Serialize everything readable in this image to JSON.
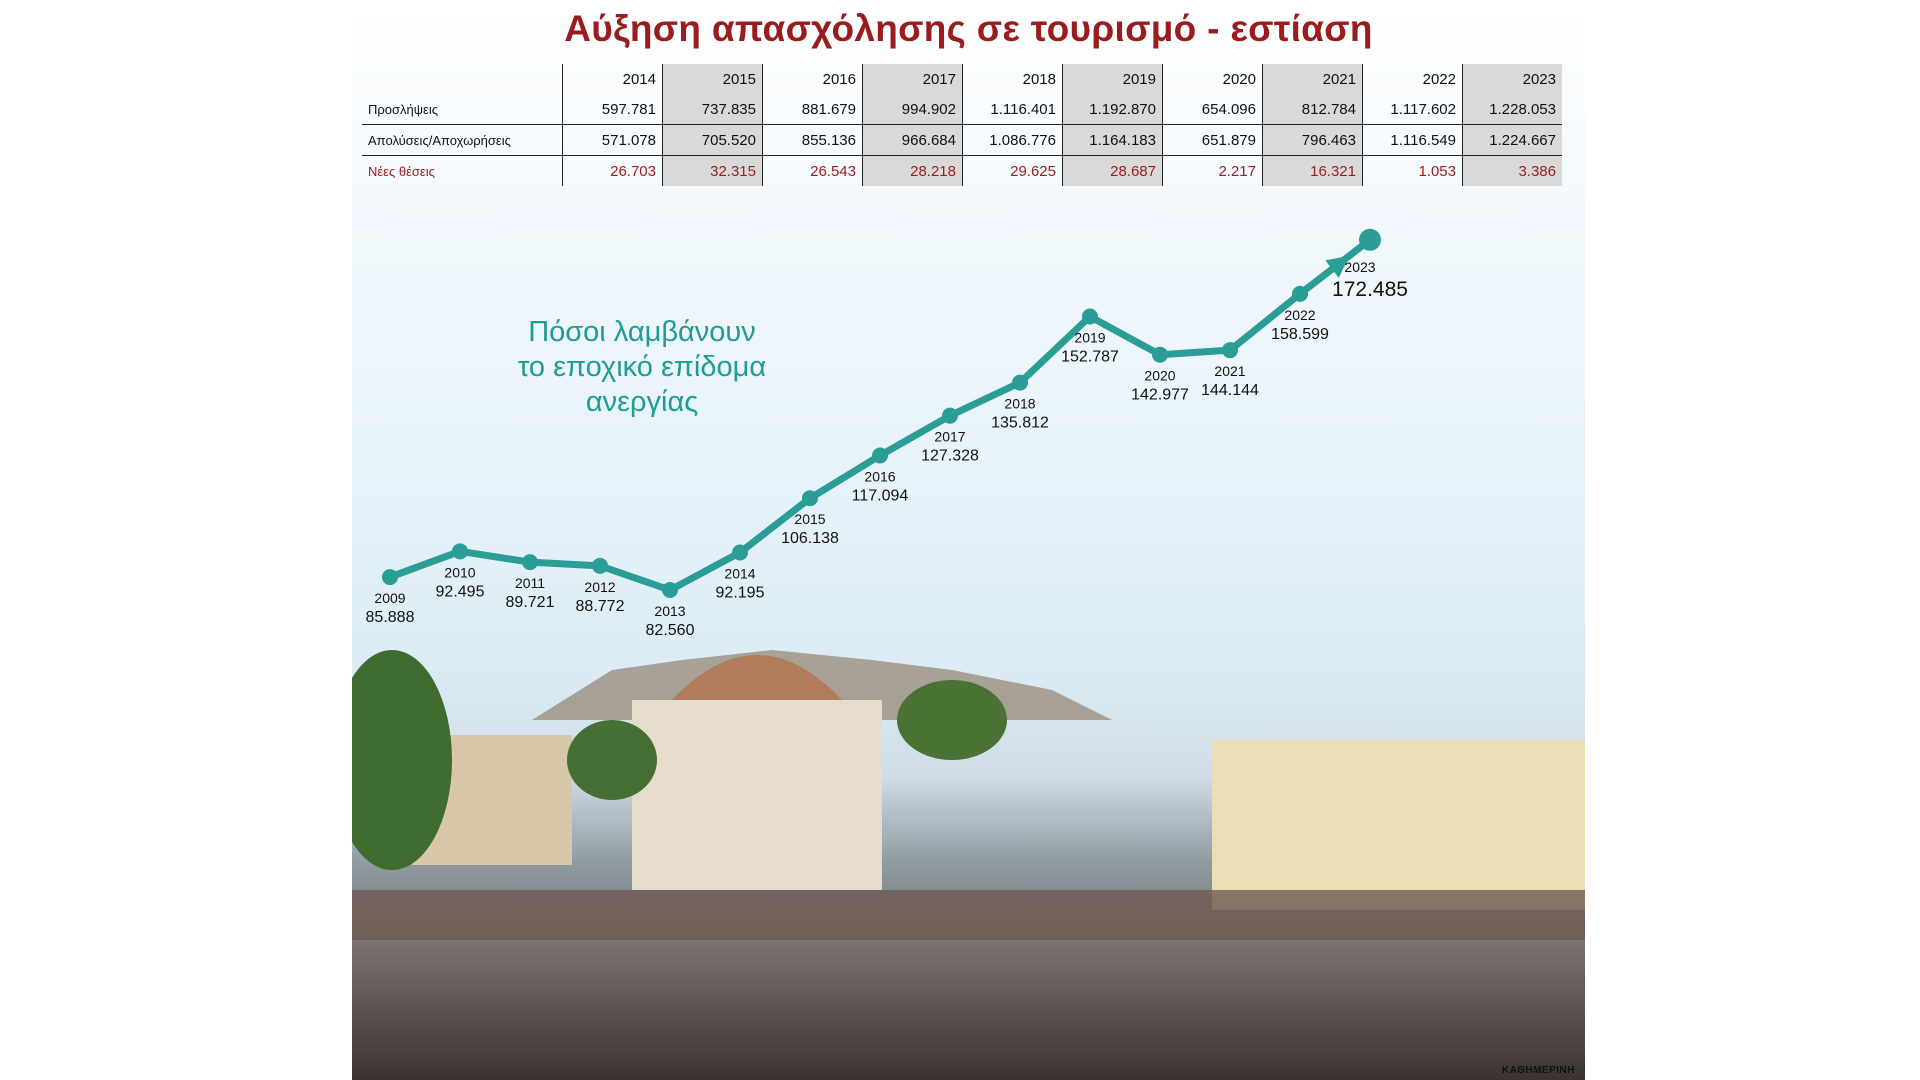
{
  "title": "Αύξηση απασχόλησης σε τουρισμό - εστίαση",
  "table": {
    "years": [
      "2014",
      "2015",
      "2016",
      "2017",
      "2018",
      "2019",
      "2020",
      "2021",
      "2022",
      "2023"
    ],
    "rows": [
      {
        "label": "Προσλήψεις",
        "values": [
          "597.781",
          "737.835",
          "881.679",
          "994.902",
          "1.116.401",
          "1.192.870",
          "654.096",
          "812.784",
          "1.117.602",
          "1.228.053"
        ]
      },
      {
        "label": "Απολύσεις/Αποχωρήσεις",
        "values": [
          "571.078",
          "705.520",
          "855.136",
          "966.684",
          "1.086.776",
          "1.164.183",
          "651.879",
          "796.463",
          "1.116.549",
          "1.224.667"
        ]
      },
      {
        "label": "Νέες θέσεις",
        "values": [
          "26.703",
          "32.315",
          "26.543",
          "28.218",
          "29.625",
          "28.687",
          "2.217",
          "16.321",
          "1.053",
          "3.386"
        ]
      }
    ]
  },
  "chart_data": {
    "type": "line",
    "title": "Πόσοι λαμβάνουν το εποχικό επίδομα ανεργίας",
    "title_lines": [
      "Πόσοι λαμβάνουν",
      "το εποχικό επίδομα",
      "ανεργίας"
    ],
    "x": [
      "2009",
      "2010",
      "2011",
      "2012",
      "2013",
      "2014",
      "2015",
      "2016",
      "2017",
      "2018",
      "2019",
      "2020",
      "2021",
      "2022",
      "2023"
    ],
    "values": [
      85888,
      92495,
      89721,
      88772,
      82560,
      92195,
      106138,
      117094,
      127328,
      135812,
      152787,
      142977,
      144144,
      158599,
      172485
    ],
    "value_labels": [
      "85.888",
      "92.495",
      "89.721",
      "88.772",
      "82.560",
      "92.195",
      "106.138",
      "117.094",
      "127.328",
      "135.812",
      "152.787",
      "142.977",
      "144.144",
      "158.599",
      "172.485"
    ],
    "color": "#2a9d96",
    "xlabel": "",
    "ylabel": ""
  },
  "credit": "ΚΑΘΗΜΕΡΙΝΗ"
}
